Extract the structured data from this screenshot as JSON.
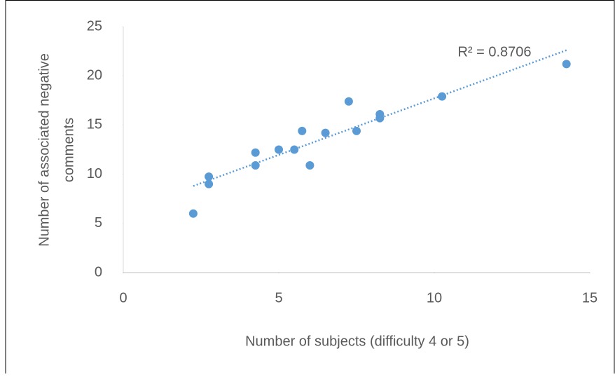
{
  "chart_data": {
    "type": "scatter",
    "xlabel": "Number  of subjects (difficulty 4 or 5)",
    "ylabel": [
      "Number of associated negative",
      "comments"
    ],
    "x": [
      2.25,
      2.75,
      2.75,
      4.25,
      4.25,
      5,
      5.5,
      5.75,
      6,
      6.5,
      7.25,
      7.5,
      8.25,
      8.25,
      10.25,
      14.25
    ],
    "values": [
      6,
      9.75,
      9,
      12.2,
      10.9,
      12.5,
      12.5,
      14.4,
      10.9,
      14.2,
      17.4,
      14.4,
      16.1,
      15.7,
      17.9,
      21.2
    ],
    "color": "#5b9bd5",
    "trendline": {
      "x": [
        2.25,
        14.25
      ],
      "values": [
        8.8,
        22.6
      ],
      "label": "R² = 0.8706"
    },
    "xlim": [
      0,
      15
    ],
    "xticks": [
      0,
      5,
      10,
      15
    ],
    "ylim": [
      0,
      25
    ],
    "yticks": [
      0,
      5,
      10,
      15,
      20,
      25
    ]
  }
}
